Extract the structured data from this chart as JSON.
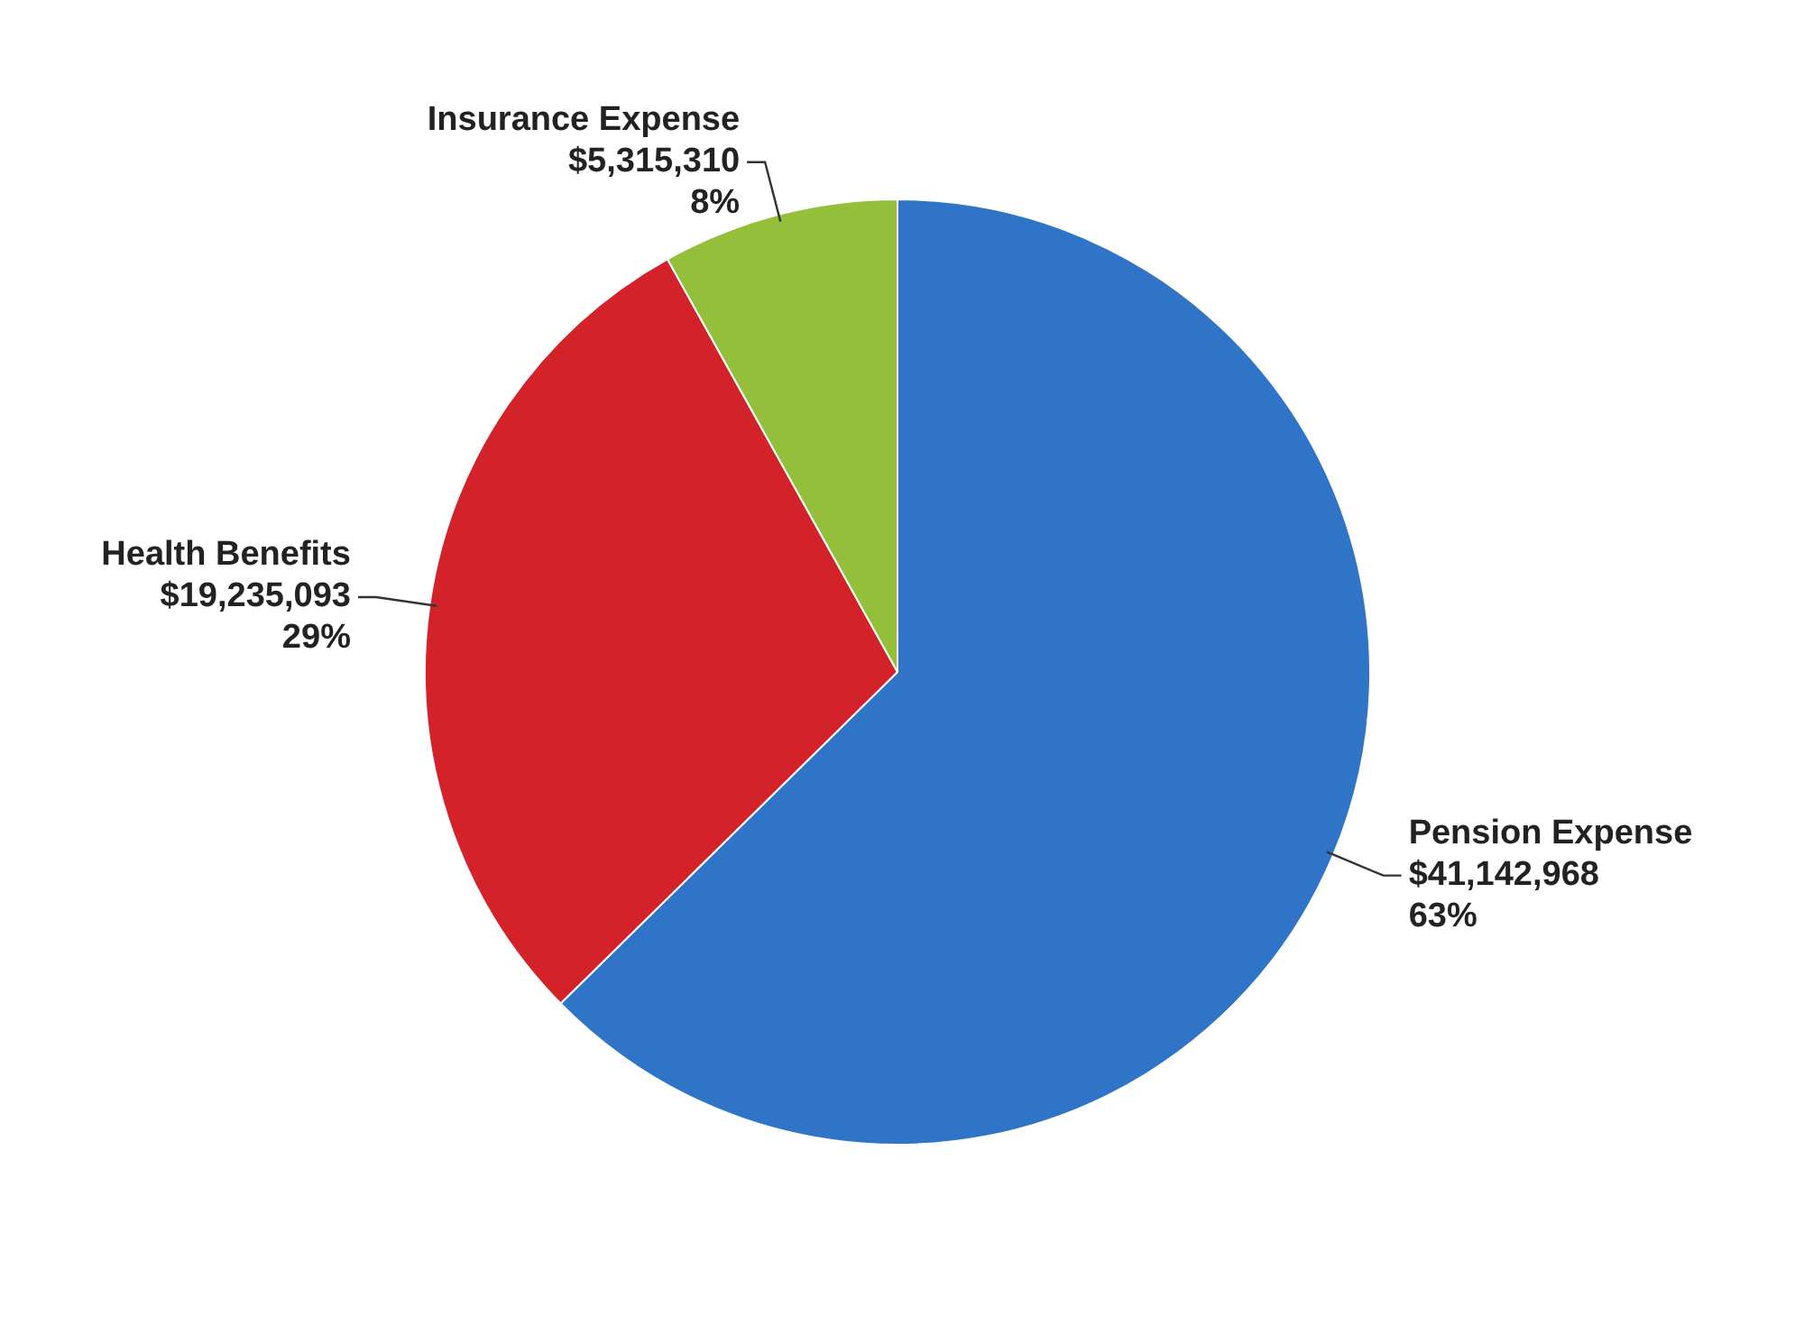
{
  "chart_data": {
    "type": "pie",
    "categories": [
      "Pension Expense",
      "Health Benefits",
      "Insurance Expense"
    ],
    "values": [
      41142968,
      19235093,
      5315310
    ],
    "colors": [
      "#2f74c6",
      "#d3222a",
      "#93bf3a"
    ],
    "value_labels": [
      "$41,142,968\n63%",
      "$19,235,093\n29%",
      "$5,315,310\n8%"
    ],
    "legend": false
  }
}
